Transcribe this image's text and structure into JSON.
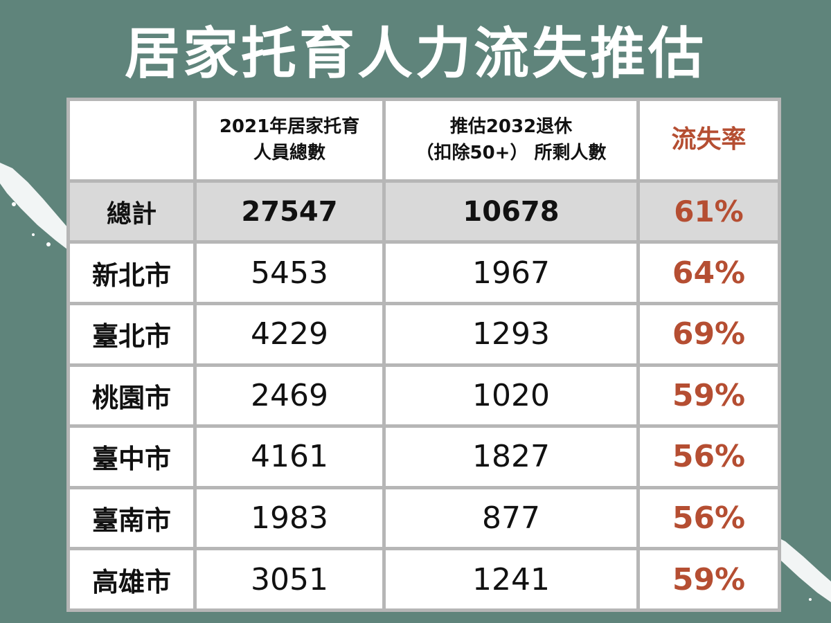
{
  "title": "居家托育人力流失推估",
  "headers": {
    "city": "",
    "total_2021_line1": "2021年居家托育",
    "total_2021_line2": "人員總數",
    "remaining_line1": "推估2032退休",
    "remaining_line2": "（扣除50+） 所剩人數",
    "loss_rate": "流失率"
  },
  "summary": {
    "label": "總計",
    "total_2021": "27547",
    "remaining_2032": "10678",
    "loss_rate": "61%"
  },
  "rows": [
    {
      "city": "新北市",
      "total_2021": "5453",
      "remaining_2032": "1967",
      "loss_rate": "64%"
    },
    {
      "city": "臺北市",
      "total_2021": "4229",
      "remaining_2032": "1293",
      "loss_rate": "69%"
    },
    {
      "city": "桃園市",
      "total_2021": "2469",
      "remaining_2032": "1020",
      "loss_rate": "59%"
    },
    {
      "city": "臺中市",
      "total_2021": "4161",
      "remaining_2032": "1827",
      "loss_rate": "56%"
    },
    {
      "city": "臺南市",
      "total_2021": "1983",
      "remaining_2032": "877",
      "loss_rate": "56%"
    },
    {
      "city": "高雄市",
      "total_2021": "3051",
      "remaining_2032": "1241",
      "loss_rate": "59%"
    }
  ],
  "colors": {
    "background": "#5f847b",
    "accent": "#b54e32",
    "summary_row": "#d9d9d9",
    "grid": "#b6b6b6"
  }
}
